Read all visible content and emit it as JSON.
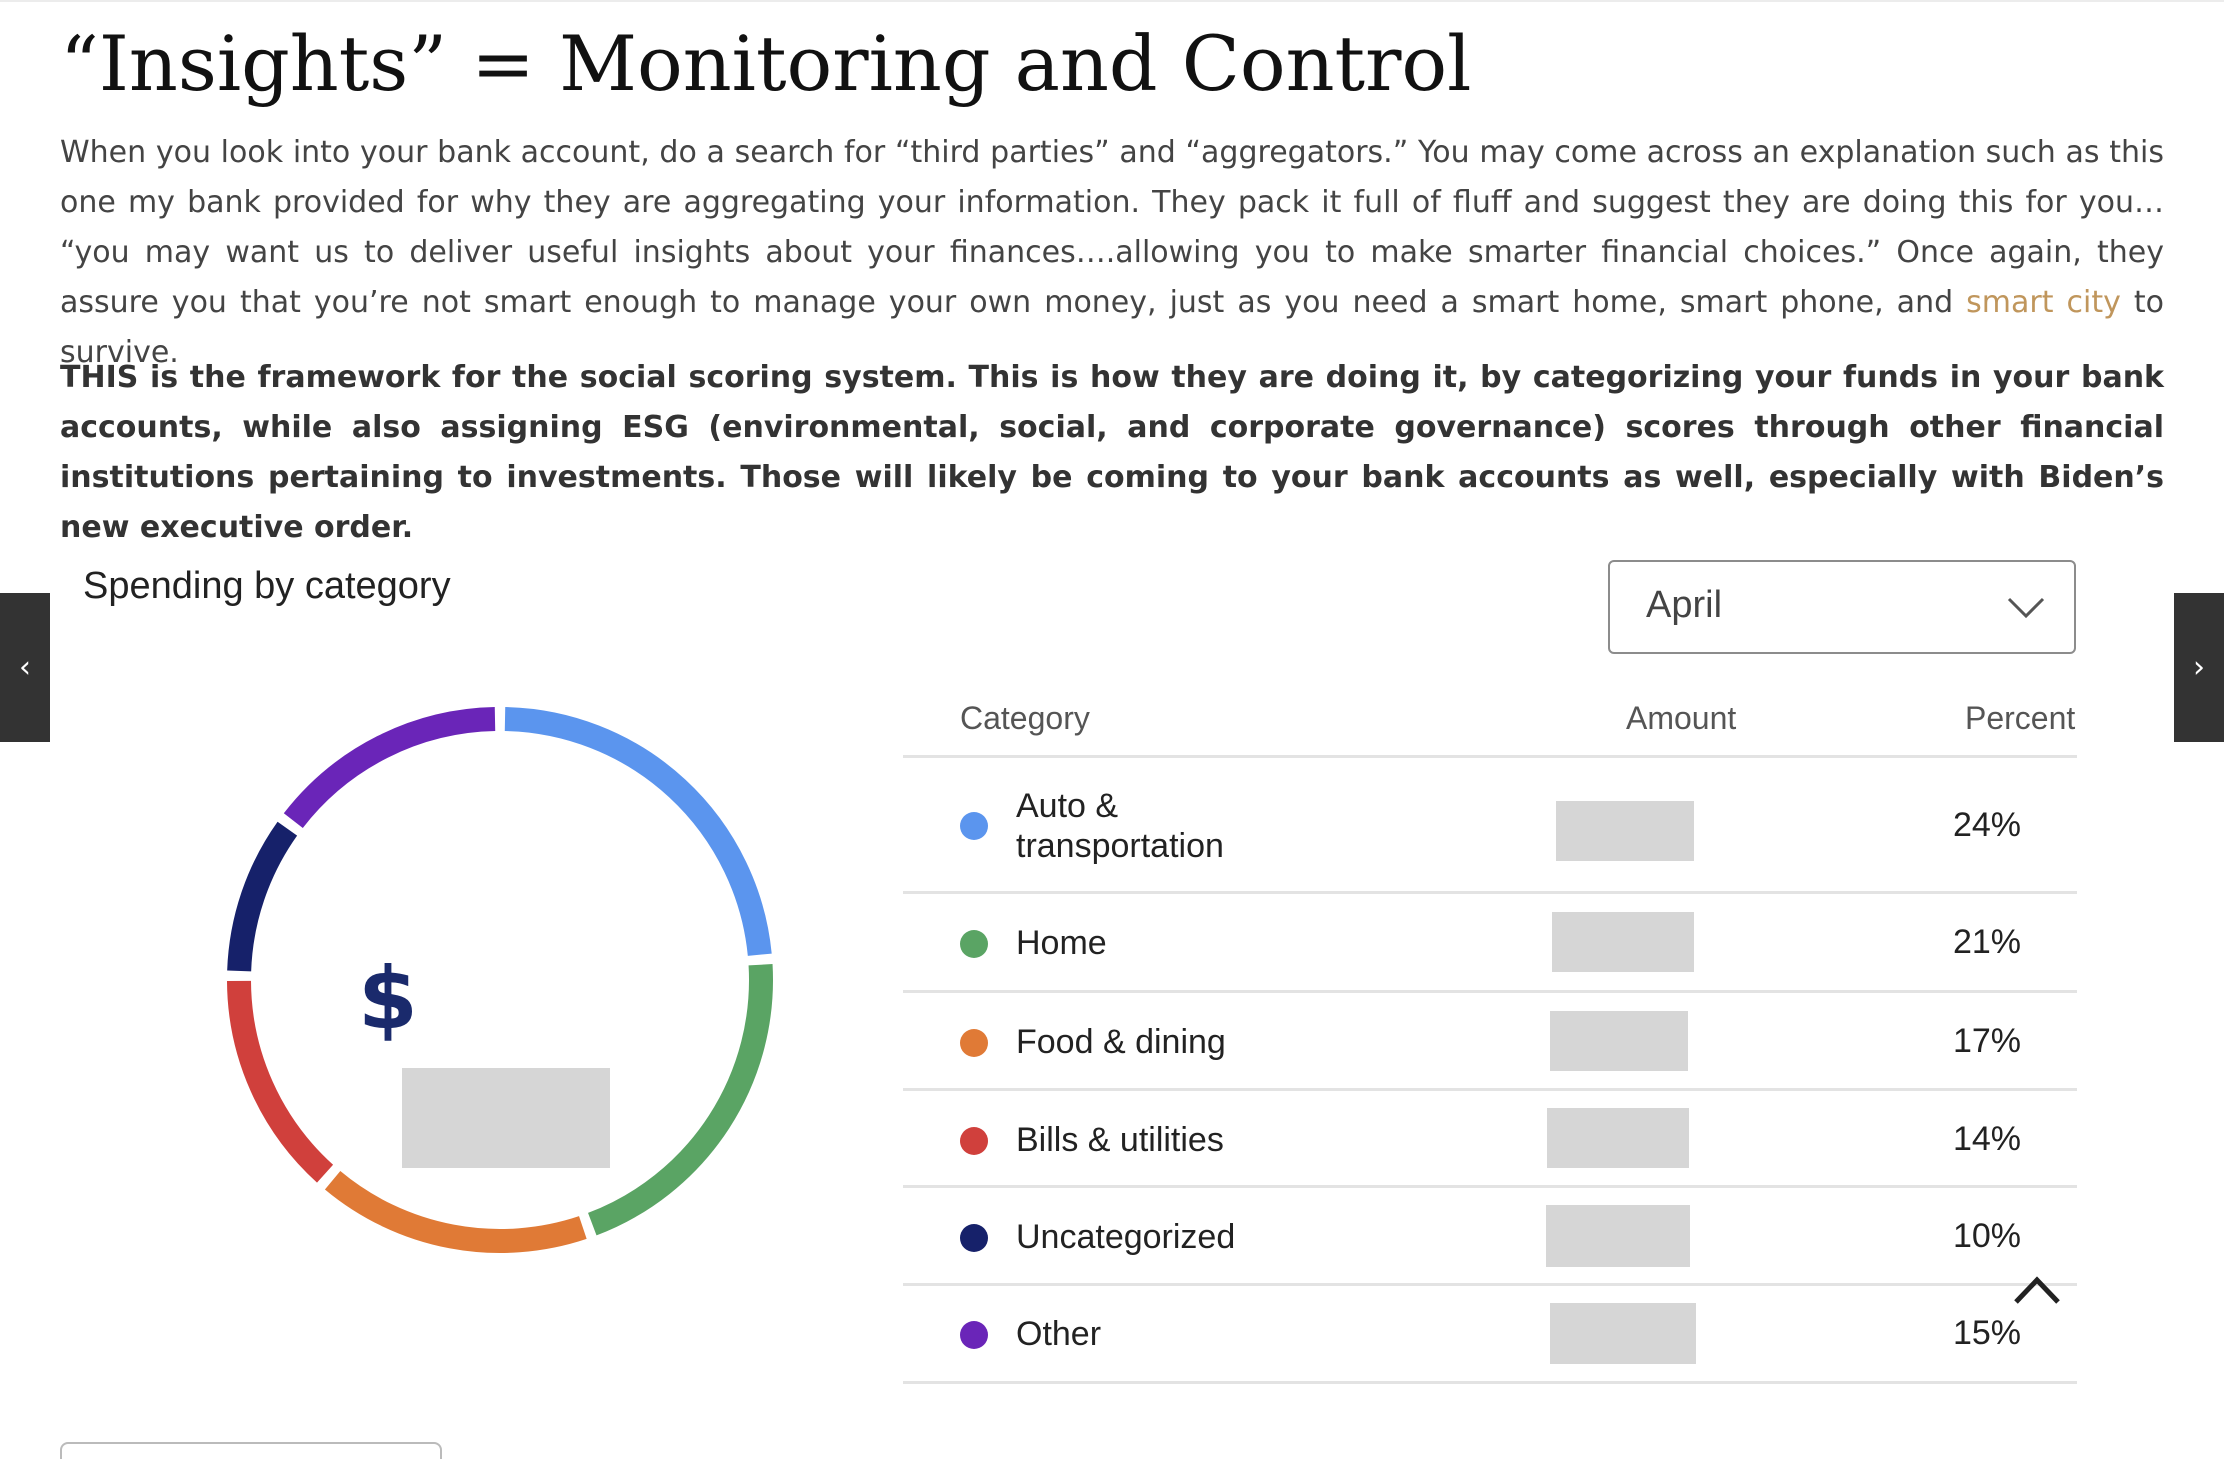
{
  "article": {
    "title": "“Insights” = Monitoring and Control",
    "paragraph1_before_link": "When you look into your bank account, do a search for “third parties” and “aggregators.” You may come across an explanation such as this one my bank provided for why they are aggregating your information. They pack it full of fluff and suggest they are doing this for you… “you may want us to deliver useful insights about your finances….allowing you to make smarter financial choices.” Once again, they assure you that you’re not smart enough to manage your own money, just as you need a smart home, smart phone, and ",
    "paragraph1_link": "smart city",
    "paragraph1_after_link": " to survive.",
    "paragraph2": "THIS is the framework for the social scoring system. This is how they are doing it, by categorizing your funds in your bank accounts, while also assigning ESG (environmental, social, and corporate governance) scores through other financial institutions pertaining to investments. Those will likely be coming to your bank accounts as well, especially with Biden’s new executive order.",
    "link_color": "#c0965c"
  },
  "gallery": {
    "prev_glyph": "‹",
    "next_glyph": "›"
  },
  "panel": {
    "title": "Spending by category",
    "month_select": {
      "value": "April",
      "icon": "chevron-down-icon"
    },
    "total_prefix": "$",
    "columns": {
      "category": "Category",
      "amount": "Amount",
      "percent": "Percent"
    },
    "rows": [
      {
        "label_line1": "Auto &",
        "label_line2": "transportation",
        "percent_label": "24%",
        "color": "#5b95ee"
      },
      {
        "label": "Home",
        "percent_label": "21%",
        "color": "#5aa464"
      },
      {
        "label": "Food & dining",
        "percent_label": "17%",
        "color": "#e07a36"
      },
      {
        "label": "Bills & utilities",
        "percent_label": "14%",
        "color": "#d0403c"
      },
      {
        "label": "Uncategorized",
        "percent_label": "10%",
        "color": "#16216a"
      },
      {
        "label": "Other",
        "percent_label": "15%",
        "color": "#6a25b8"
      }
    ]
  },
  "chart_data": {
    "type": "pie",
    "variant": "donut",
    "categories": [
      "Auto & transportation",
      "Home",
      "Food & dining",
      "Bills & utilities",
      "Uncategorized",
      "Other"
    ],
    "values": [
      24,
      21,
      17,
      14,
      10,
      15
    ],
    "unit": "%",
    "colors": [
      "#5b95ee",
      "#5aa464",
      "#e07a36",
      "#d0403c",
      "#16216a",
      "#6a25b8"
    ],
    "center_label": "$",
    "center_value_redacted": true,
    "start": "top",
    "direction": "clockwise"
  }
}
